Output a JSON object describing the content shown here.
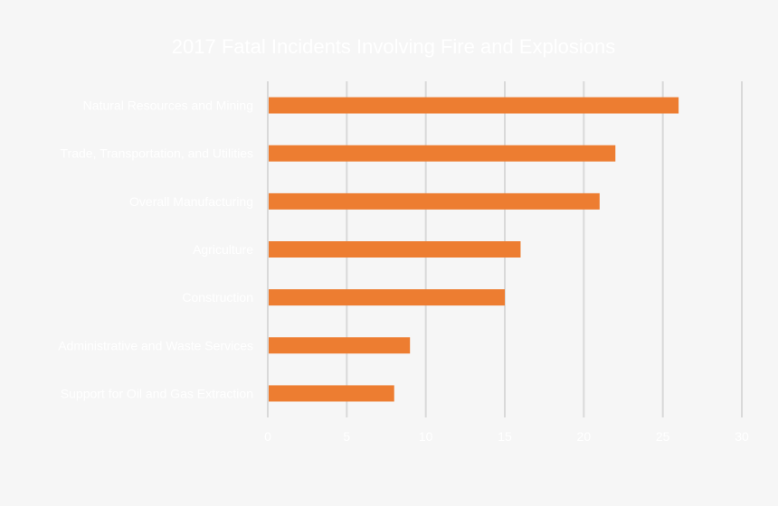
{
  "chart_data": {
    "type": "bar",
    "orientation": "horizontal",
    "title": "2017 Fatal Incidents Involving Fire and Explosions",
    "categories": [
      "Natural Resources and Mining",
      "Trade, Transportation, and Utilities",
      "Overall Manufacturing",
      "Agriculture",
      "Construction",
      "Administrative and Waste Services",
      "Support for Oil and Gas Extraction"
    ],
    "values": [
      26,
      22,
      21,
      16,
      15,
      9,
      8
    ],
    "xlabel": "",
    "ylabel": "",
    "xlim": [
      0,
      30
    ],
    "xticks": [
      "0",
      "5",
      "10",
      "15",
      "20",
      "25",
      "30"
    ],
    "grid": true,
    "legend": "none",
    "colors": {
      "bar": "#ed7d31",
      "background": "#f6f6f6",
      "grid": "#d9d9d9",
      "text": "#ffffff"
    }
  }
}
